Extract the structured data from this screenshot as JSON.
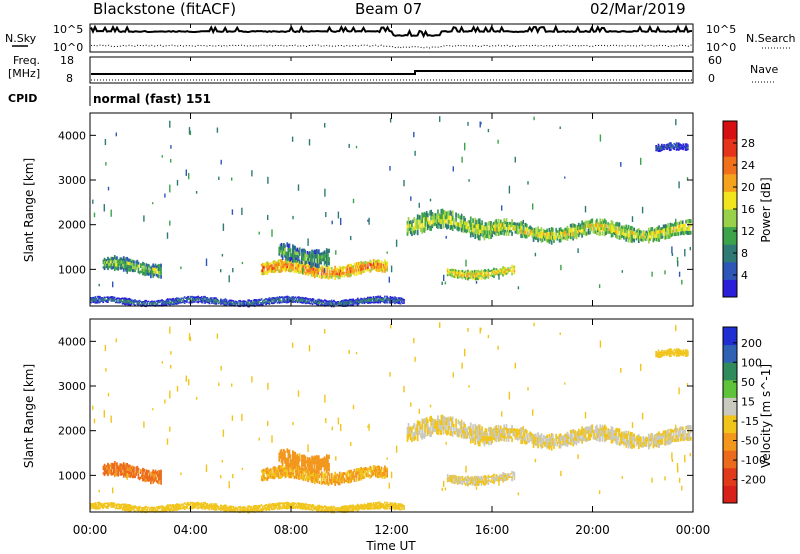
{
  "header": {
    "station": "Blackstone (fitACF)",
    "beam": "Beam 07",
    "date": "02/Mar/2019"
  },
  "top_panels": {
    "nsky_label": "N.Sky",
    "nsearch_label": "N.Search",
    "noise_ticks": [
      "10^5",
      "10^0"
    ],
    "freq_label": "Freq.",
    "freq_unit": "[MHz]",
    "freq_ticks": [
      "18",
      "8"
    ],
    "nave_label": "Nave",
    "nave_ticks": [
      "60",
      "0"
    ],
    "cpid_label": "CPID",
    "cpid_text": "normal (fast) 151"
  },
  "power_panel": {
    "ylabel": "Slant Range [km]",
    "yticks": [
      "4000",
      "3000",
      "2000",
      "1000"
    ],
    "colorbar_label": "Power [dB]",
    "colorbar_ticks": [
      "28",
      "24",
      "20",
      "16",
      "12",
      "8",
      "4"
    ],
    "colors": [
      "#2b1fd9",
      "#2e56b8",
      "#2f7a74",
      "#3da34b",
      "#9ad14a",
      "#f2e41d",
      "#f5a31c",
      "#f0701c",
      "#e6341b",
      "#d61010"
    ]
  },
  "velocity_panel": {
    "ylabel": "Slant Range [km]",
    "yticks": [
      "4000",
      "3000",
      "2000",
      "1000"
    ],
    "colorbar_label": "Velocity [m s^-1]",
    "colorbar_ticks": [
      "200",
      "100",
      "50",
      "15",
      "-15",
      "-50",
      "-100",
      "-200"
    ],
    "colors": [
      "#1f2fd1",
      "#2f62b5",
      "#2f8a5c",
      "#5ec33a",
      "#c9c9c0",
      "#f0c41a",
      "#f2961c",
      "#ec6a1c",
      "#e03a1b",
      "#d8201b"
    ]
  },
  "xaxis": {
    "label": "Time UT",
    "ticks": [
      "00:00",
      "04:00",
      "08:00",
      "12:00",
      "16:00",
      "20:00",
      "00:00"
    ]
  },
  "chart_data": [
    {
      "type": "heatmap",
      "title": "Power [dB]",
      "xlabel": "Time UT",
      "ylabel": "Slant Range [km]",
      "xlim": [
        0,
        24
      ],
      "ylim": [
        180,
        4500
      ],
      "zlim": [
        0,
        30
      ],
      "regions": [
        {
          "t0": 0.5,
          "t1": 2.8,
          "r_center": 1050,
          "r_half": 180,
          "power": 14
        },
        {
          "t0": 6.8,
          "t1": 11.8,
          "r_center": 1000,
          "r_half": 160,
          "power": 23
        },
        {
          "t0": 7.5,
          "t1": 9.5,
          "r_center": 1350,
          "r_half": 220,
          "power": 12
        },
        {
          "t0": 12.6,
          "t1": 16.0,
          "r_center": 2000,
          "r_half": 250,
          "power": 16
        },
        {
          "t0": 14.2,
          "t1": 16.9,
          "r_center": 930,
          "r_half": 120,
          "power": 19
        },
        {
          "t0": 16.0,
          "t1": 23.9,
          "r_center": 1850,
          "r_half": 200,
          "power": 17
        },
        {
          "t0": 22.5,
          "t1": 23.8,
          "r_center": 3700,
          "r_half": 100,
          "power": 6
        },
        {
          "t0": 0.0,
          "t1": 12.5,
          "r_center": 280,
          "r_half": 90,
          "power": 8
        }
      ]
    },
    {
      "type": "heatmap",
      "title": "Velocity [m s^-1]",
      "xlabel": "Time UT",
      "ylabel": "Slant Range [km]",
      "xlim": [
        0,
        24
      ],
      "ylim": [
        180,
        4500
      ],
      "zlim": [
        -200,
        200
      ],
      "regions": [
        {
          "t0": 0.5,
          "t1": 2.8,
          "r_center": 1050,
          "r_half": 180,
          "velocity": -90
        },
        {
          "t0": 6.8,
          "t1": 11.8,
          "r_center": 1000,
          "r_half": 160,
          "velocity": -40
        },
        {
          "t0": 7.5,
          "t1": 9.5,
          "r_center": 1350,
          "r_half": 220,
          "velocity": -60
        },
        {
          "t0": 12.6,
          "t1": 16.0,
          "r_center": 2000,
          "r_half": 250,
          "velocity": 0
        },
        {
          "t0": 14.2,
          "t1": 16.9,
          "r_center": 930,
          "r_half": 120,
          "velocity": 0
        },
        {
          "t0": 16.0,
          "t1": 23.9,
          "r_center": 1850,
          "r_half": 200,
          "velocity": 0
        },
        {
          "t0": 22.5,
          "t1": 23.8,
          "r_center": 3700,
          "r_half": 100,
          "velocity": -20
        },
        {
          "t0": 0.0,
          "t1": 12.5,
          "r_center": 280,
          "r_half": 90,
          "velocity": -20
        }
      ]
    }
  ]
}
